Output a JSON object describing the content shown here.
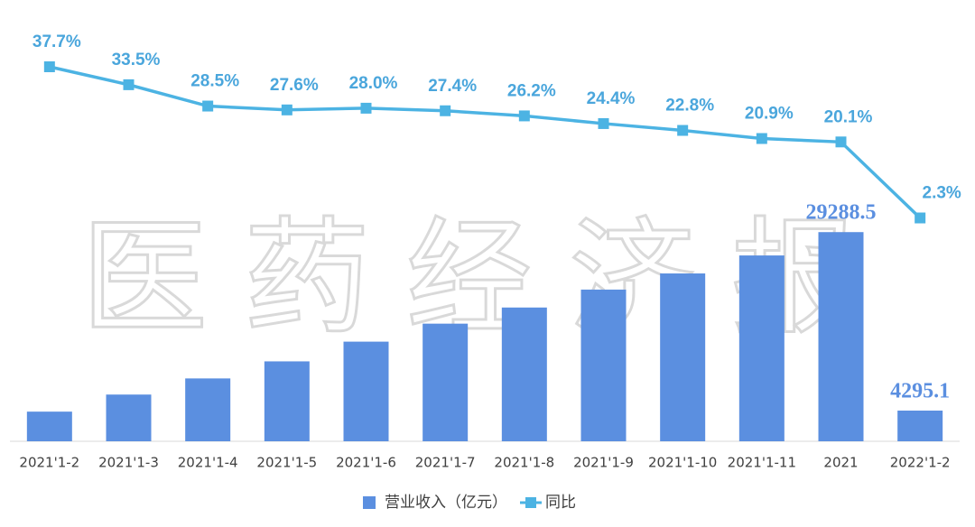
{
  "chart_data": {
    "type": "bar-line",
    "watermark": "医药经济报",
    "categories": [
      "2021'1-2",
      "2021'1-3",
      "2021'1-4",
      "2021'1-5",
      "2021'1-6",
      "2021'1-7",
      "2021'1-8",
      "2021'1-9",
      "2021'1-10",
      "2021'1-11",
      "2021",
      "2022'1-2"
    ],
    "series": [
      {
        "name": "营业收入（亿元）",
        "color": "#5b8fe0",
        "type": "bar",
        "values": [
          4150,
          6540,
          8800,
          11190,
          13950,
          16470,
          18730,
          21240,
          23500,
          26020,
          29288.5,
          4295.1
        ],
        "value_labels": [
          null,
          null,
          null,
          null,
          null,
          null,
          null,
          null,
          null,
          null,
          "29288.5",
          "4295.1"
        ]
      },
      {
        "name": "同比",
        "color": "#4cb3e3",
        "type": "line",
        "axis": "y2",
        "values": [
          37.7,
          33.5,
          28.5,
          27.6,
          28.0,
          27.4,
          26.2,
          24.4,
          22.8,
          20.9,
          20.1,
          2.3
        ],
        "value_labels": [
          "37.7%",
          "33.5%",
          "28.5%",
          "27.6%",
          "28.0%",
          "27.4%",
          "26.2%",
          "24.4%",
          "22.8%",
          "20.9%",
          "20.1%",
          "2.3%"
        ]
      }
    ],
    "ylim": [
      0,
      58000
    ],
    "y2lim": [
      -50,
      47
    ]
  }
}
